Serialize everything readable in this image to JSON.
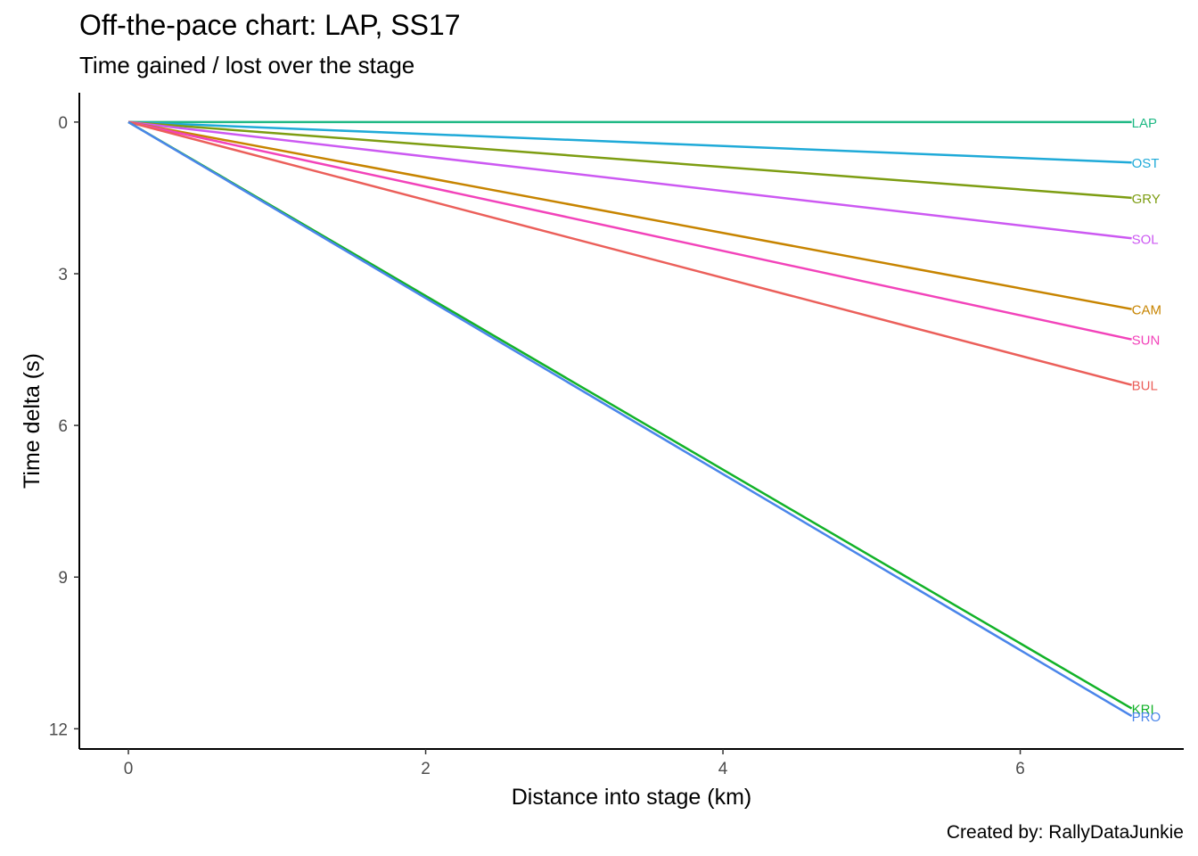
{
  "chart_data": {
    "type": "line",
    "title": "Off-the-pace chart: LAP, SS17",
    "subtitle": "Time gained / lost over the stage",
    "caption": "Created by: RallyDataJunkie",
    "xlabel": "Distance into stage (km)",
    "ylabel": "Time delta (s)",
    "xlim": [
      -0.33,
      7.1
    ],
    "ylim": [
      12.4,
      -0.58
    ],
    "y_reversed": true,
    "x_ticks": [
      0,
      2,
      4,
      6
    ],
    "y_ticks": [
      0,
      3,
      6,
      9,
      12
    ],
    "grid": false,
    "legend": "direct labels at line ends",
    "series": [
      {
        "name": "LAP",
        "color": "#1fb985",
        "x": [
          0,
          6.75
        ],
        "y": [
          0,
          0
        ]
      },
      {
        "name": "OST",
        "color": "#1faad8",
        "x": [
          0,
          6.75
        ],
        "y": [
          0,
          0.8
        ]
      },
      {
        "name": "GRY",
        "color": "#7d9d12",
        "x": [
          0,
          6.75
        ],
        "y": [
          0,
          1.5
        ]
      },
      {
        "name": "SOL",
        "color": "#cc59f2",
        "x": [
          0,
          6.75
        ],
        "y": [
          0,
          2.3
        ]
      },
      {
        "name": "CAM",
        "color": "#c78400",
        "x": [
          0,
          6.75
        ],
        "y": [
          0,
          3.7
        ]
      },
      {
        "name": "SUN",
        "color": "#f243ba",
        "x": [
          0,
          6.75
        ],
        "y": [
          0,
          4.3
        ]
      },
      {
        "name": "BUL",
        "color": "#eb5f5a",
        "x": [
          0,
          6.75
        ],
        "y": [
          0,
          5.2
        ]
      },
      {
        "name": "KRI",
        "color": "#12b228",
        "x": [
          0,
          6.75
        ],
        "y": [
          0,
          11.6
        ]
      },
      {
        "name": "PRO",
        "color": "#4a85ea",
        "x": [
          0,
          6.75
        ],
        "y": [
          0,
          11.75
        ]
      }
    ]
  }
}
